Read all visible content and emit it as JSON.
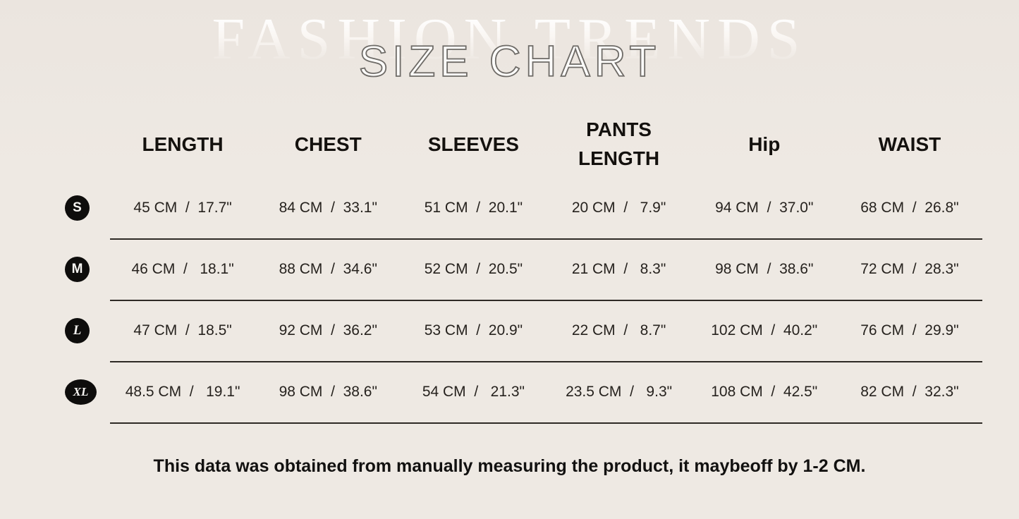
{
  "watermark": "FASHION TRENDS",
  "title": "SIZE CHART",
  "table": {
    "columns": [
      "LENGTH",
      "CHEST",
      "SLEEVES",
      "PANTS LENGTH",
      "Hip",
      "WAIST"
    ],
    "rows": [
      {
        "size": "S",
        "cells": [
          "45 CM  /  17.7\"",
          "84 CM  /  33.1\"",
          "51 CM  /  20.1\"",
          "20 CM  /   7.9\"",
          "94 CM  /  37.0\"",
          "68 CM  /  26.8\""
        ]
      },
      {
        "size": "M",
        "cells": [
          "46 CM  /   18.1\"",
          "88 CM  /  34.6\"",
          "52 CM  /  20.5\"",
          "21 CM  /   8.3\"",
          "98 CM  /  38.6\"",
          "72 CM  /  28.3\""
        ]
      },
      {
        "size": "L",
        "cells": [
          "47 CM  /  18.5\"",
          "92 CM  /  36.2\"",
          "53 CM  /  20.9\"",
          "22 CM  /   8.7\"",
          "102 CM  /  40.2\"",
          "76 CM  /  29.9\""
        ]
      },
      {
        "size": "XL",
        "cells": [
          "48.5 CM  /   19.1\"",
          "98 CM  /  38.6\"",
          "54 CM  /   21.3\"",
          "23.5 CM  /   9.3\"",
          "108 CM  /  42.5\"",
          "82 CM  /  32.3\""
        ]
      }
    ]
  },
  "note": "This data was obtained from manually measuring the product, it maybeoff by 1-2 CM.",
  "colors": {
    "background": "#eee9e3",
    "text": "#26221e",
    "divider": "#2e2a25",
    "badge_background": "#0e0d0c",
    "badge_text": "#f7f5f2",
    "title_fill": "#fdfcfa",
    "title_outline": "#6e6b67",
    "watermark": "#ffffff"
  },
  "chart_data": {
    "type": "table",
    "title": "SIZE CHART",
    "columns": [
      "LENGTH",
      "CHEST",
      "SLEEVES",
      "PANTS LENGTH",
      "Hip",
      "WAIST"
    ],
    "row_labels": [
      "S",
      "M",
      "L",
      "XL"
    ],
    "units": [
      "CM",
      "inch"
    ],
    "values_cm": {
      "LENGTH": [
        45,
        46,
        47,
        48.5
      ],
      "CHEST": [
        84,
        88,
        92,
        98
      ],
      "SLEEVES": [
        51,
        52,
        53,
        54
      ],
      "PANTS_LENGTH": [
        20,
        21,
        22,
        23.5
      ],
      "Hip": [
        94,
        98,
        102,
        108
      ],
      "WAIST": [
        68,
        72,
        76,
        82
      ]
    },
    "values_inch": {
      "LENGTH": [
        17.7,
        18.1,
        18.5,
        19.1
      ],
      "CHEST": [
        33.1,
        34.6,
        36.2,
        38.6
      ],
      "SLEEVES": [
        20.1,
        20.5,
        20.9,
        21.3
      ],
      "PANTS_LENGTH": [
        7.9,
        8.3,
        8.7,
        9.3
      ],
      "Hip": [
        37.0,
        38.6,
        40.2,
        42.5
      ],
      "WAIST": [
        26.8,
        28.3,
        29.9,
        32.3
      ]
    },
    "note": "This data was obtained from manually measuring the product, it maybeoff by 1-2 CM."
  }
}
